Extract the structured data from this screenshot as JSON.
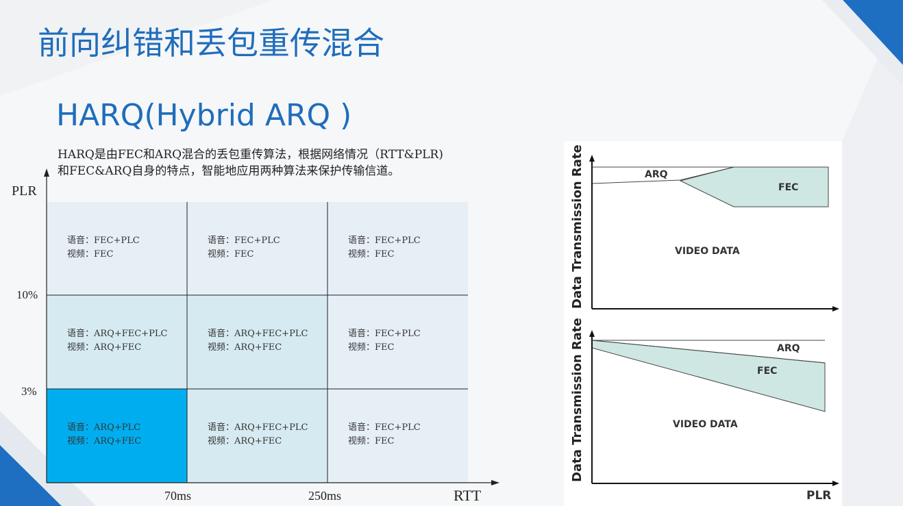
{
  "slide": {
    "title": "前向纠错和丢包重传混合",
    "subtitle": "HARQ(Hybrid ARQ )",
    "description": [
      "HARQ是由FEC和ARQ混合的丢包重传算法，根据网络情况（RTT&PLR)",
      "和FEC&ARQ自身的特点，智能地应用两种算法来保护传输信道。"
    ]
  },
  "matrix": {
    "y_axis_label": "PLR",
    "x_axis_label": "RTT",
    "y_ticks": [
      "10%",
      "3%"
    ],
    "x_ticks": [
      "70ms",
      "250ms"
    ],
    "rows": [
      [
        {
          "voice": "语音：FEC+PLC",
          "video": "视频：FEC",
          "fill": "#e6eef6"
        },
        {
          "voice": "语音：FEC+PLC",
          "video": "视频：FEC",
          "fill": "#e6eef6"
        },
        {
          "voice": "语音：FEC+PLC",
          "video": "视频：FEC",
          "fill": "#e6eef6"
        }
      ],
      [
        {
          "voice": "语音：ARQ+FEC+PLC",
          "video": "视频：ARQ+FEC",
          "fill": "#d6eaf1"
        },
        {
          "voice": "语音：ARQ+FEC+PLC",
          "video": "视频：ARQ+FEC",
          "fill": "#d6eaf1"
        },
        {
          "voice": "语音：FEC+PLC",
          "video": "视频：FEC",
          "fill": "#e6eef6"
        }
      ],
      [
        {
          "voice": "语音：ARQ+PLC",
          "video": "视频：ARQ+FEC",
          "fill": "#00aeef"
        },
        {
          "voice": "语音：ARQ+FEC+PLC",
          "video": "视频：ARQ+FEC",
          "fill": "#d6eaf1"
        },
        {
          "voice": "语音：FEC+PLC",
          "video": "视频：FEC",
          "fill": "#e6eef6"
        }
      ]
    ]
  },
  "graph_top": {
    "y_axis_label": "Data Transmission Rate",
    "arq_label": "ARQ",
    "fec_label": "FEC",
    "video_label": "VIDEO DATA"
  },
  "graph_bottom": {
    "y_axis_label": "Data Transmission Rate",
    "x_axis_label": "PLR",
    "arq_label": "ARQ",
    "fec_label": "FEC",
    "video_label": "VIDEO DATA"
  },
  "colors": {
    "title_blue": "#1f6dbb",
    "fec_fill": "#cfe7e3",
    "accent_blue": "#00aeef"
  }
}
